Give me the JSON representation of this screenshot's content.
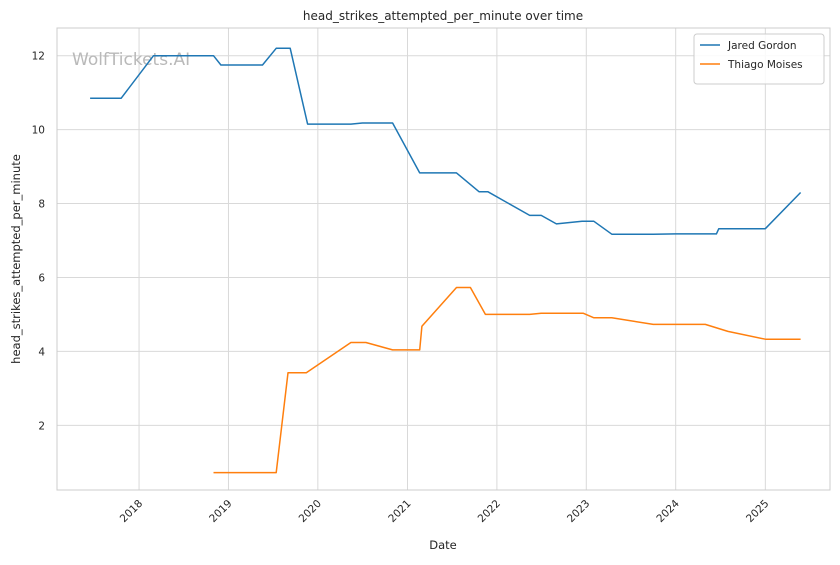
{
  "chart_data": {
    "type": "line",
    "title": "head_strikes_attempted_per_minute over time",
    "xlabel": "Date",
    "ylabel": "head_strikes_attempted_per_minute",
    "watermark": "WolfTickets.AI",
    "x_ticks": [
      "2018",
      "2019",
      "2020",
      "2021",
      "2022",
      "2023",
      "2024",
      "2025"
    ],
    "y_ticks": [
      2,
      4,
      6,
      8,
      10,
      12
    ],
    "xlim": [
      "2017-01-31",
      "2025-09-22"
    ],
    "ylim": [
      0.25,
      12.75
    ],
    "grid": true,
    "legend_position": "top-right",
    "series": [
      {
        "name": "Jared Gordon",
        "color": "#1f77b4",
        "points": [
          [
            "2017-06-15",
            10.85
          ],
          [
            "2017-10-20",
            10.85
          ],
          [
            "2018-03-01",
            12.0
          ],
          [
            "2018-11-01",
            12.0
          ],
          [
            "2018-12-01",
            11.75
          ],
          [
            "2019-05-20",
            11.75
          ],
          [
            "2019-07-15",
            12.2
          ],
          [
            "2019-09-10",
            12.2
          ],
          [
            "2019-11-20",
            10.15
          ],
          [
            "2020-05-15",
            10.15
          ],
          [
            "2020-07-01",
            10.18
          ],
          [
            "2020-11-01",
            10.18
          ],
          [
            "2021-02-20",
            8.83
          ],
          [
            "2021-07-20",
            8.83
          ],
          [
            "2021-10-20",
            8.32
          ],
          [
            "2021-11-25",
            8.32
          ],
          [
            "2022-05-15",
            7.68
          ],
          [
            "2022-07-01",
            7.68
          ],
          [
            "2022-09-01",
            7.45
          ],
          [
            "2022-12-15",
            7.52
          ],
          [
            "2023-02-01",
            7.52
          ],
          [
            "2023-04-15",
            7.17
          ],
          [
            "2023-10-01",
            7.17
          ],
          [
            "2024-01-01",
            7.18
          ],
          [
            "2024-06-15",
            7.18
          ],
          [
            "2024-06-25",
            7.32
          ],
          [
            "2025-01-01",
            7.32
          ],
          [
            "2025-05-25",
            8.3
          ]
        ]
      },
      {
        "name": "Thiago Moises",
        "color": "#ff7f0e",
        "points": [
          [
            "2018-11-01",
            0.72
          ],
          [
            "2019-07-15",
            0.72
          ],
          [
            "2019-09-01",
            3.42
          ],
          [
            "2019-11-15",
            3.42
          ],
          [
            "2020-05-15",
            4.24
          ],
          [
            "2020-07-15",
            4.24
          ],
          [
            "2020-11-01",
            4.04
          ],
          [
            "2021-02-20",
            4.04
          ],
          [
            "2021-03-01",
            4.68
          ],
          [
            "2021-07-20",
            5.73
          ],
          [
            "2021-09-15",
            5.73
          ],
          [
            "2021-11-15",
            5.0
          ],
          [
            "2022-05-15",
            5.0
          ],
          [
            "2022-07-01",
            5.03
          ],
          [
            "2022-12-20",
            5.03
          ],
          [
            "2023-02-01",
            4.91
          ],
          [
            "2023-04-15",
            4.91
          ],
          [
            "2023-10-01",
            4.73
          ],
          [
            "2024-05-01",
            4.73
          ],
          [
            "2024-08-01",
            4.54
          ],
          [
            "2025-01-01",
            4.33
          ],
          [
            "2025-05-25",
            4.33
          ]
        ]
      }
    ]
  }
}
